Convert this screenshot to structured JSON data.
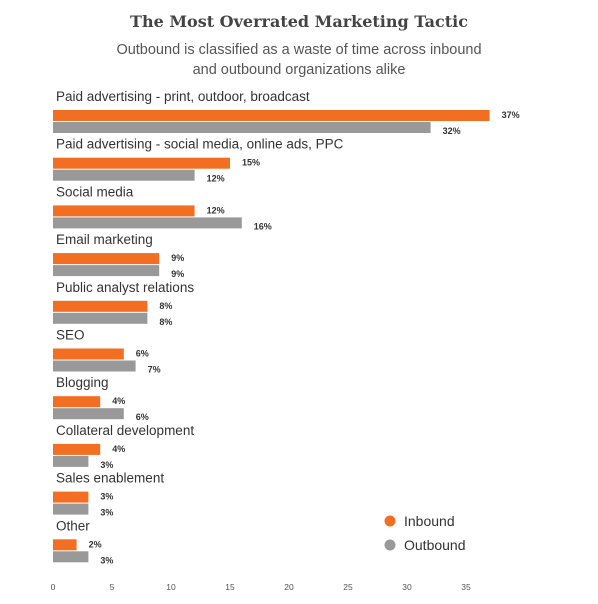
{
  "title": "The Most Overrated Marketing Tactic",
  "subtitle": [
    "Outbound is classified as a waste of time across inbound",
    "and outbound organizations alike"
  ],
  "colors": {
    "inbound": "#f26e22",
    "outbound": "#999999",
    "text": "#333333"
  },
  "chart_data": {
    "type": "bar",
    "orientation": "horizontal",
    "categories": [
      "Paid advertising - print, outdoor, broadcast",
      "Paid advertising - social media, online ads, PPC",
      "Social media",
      "Email marketing",
      "Public analyst relations",
      "SEO",
      "Blogging",
      "Collateral development",
      "Sales enablement",
      "Other"
    ],
    "series": [
      {
        "name": "Inbound",
        "values": [
          37,
          15,
          12,
          9,
          8,
          6,
          4,
          4,
          3,
          2
        ],
        "labels": [
          "37%",
          "15%",
          "12%",
          "9%",
          "8%",
          "6%",
          "4%",
          "4%",
          "3%",
          "2%"
        ]
      },
      {
        "name": "Outbound",
        "values": [
          32,
          12,
          16,
          9,
          8,
          7,
          6,
          3,
          3,
          3
        ],
        "labels": [
          "32%",
          "12%",
          "16%",
          "9%",
          "8%",
          "7%",
          "6%",
          "3%",
          "3%",
          "3%"
        ]
      }
    ],
    "xlim": [
      0,
      38
    ],
    "xticks": [
      0,
      5,
      10,
      15,
      20,
      25,
      30,
      35
    ],
    "xtick_labels": [
      "0",
      "5",
      "10",
      "15",
      "20",
      "25",
      "30",
      "35"
    ],
    "legend": "bottom-right",
    "grid": false
  }
}
